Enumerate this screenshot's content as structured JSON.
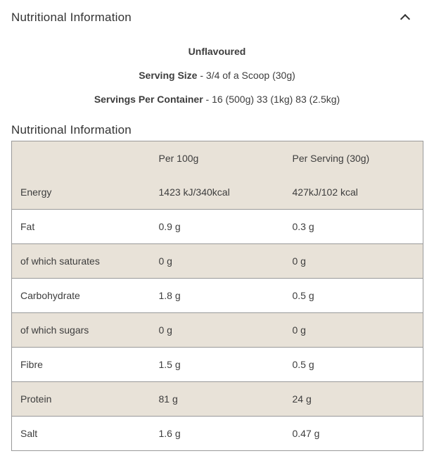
{
  "accordion": {
    "title": "Nutritional Information",
    "icon": "chevron-up-icon"
  },
  "intro": {
    "flavour": "Unflavoured",
    "serving_size_label": "Serving Size",
    "serving_size_value": "- 3/4 of a Scoop (30g)",
    "servings_label": "Servings Per Container",
    "servings_value": "- 16 (500g) 33 (1kg) 83 (2.5kg)"
  },
  "section_title": "Nutritional Information",
  "table": {
    "col_labels": [
      "",
      "Per 100g",
      "Per Serving (30g)"
    ],
    "rows": [
      {
        "label": "Energy",
        "per_100g": "1423 kJ/340kcal",
        "per_serving": "427kJ/102 kcal"
      },
      {
        "label": "Fat",
        "per_100g": "0.9 g",
        "per_serving": "0.3 g"
      },
      {
        "label": "of which saturates",
        "per_100g": "0 g",
        "per_serving": "0 g"
      },
      {
        "label": "Carbohydrate",
        "per_100g": "1.8 g",
        "per_serving": "0.5 g"
      },
      {
        "label": "of which sugars",
        "per_100g": "0 g",
        "per_serving": "0 g"
      },
      {
        "label": "Fibre",
        "per_100g": "1.5 g",
        "per_serving": "0.5 g"
      },
      {
        "label": "Protein",
        "per_100g": "81 g",
        "per_serving": "24 g"
      },
      {
        "label": "Salt",
        "per_100g": "1.6 g",
        "per_serving": "0.47 g"
      }
    ]
  },
  "colors": {
    "stripe_background": "#e8e2d8",
    "table_border": "#999999",
    "text": "#3d3d3d",
    "heading_text": "#333333"
  }
}
